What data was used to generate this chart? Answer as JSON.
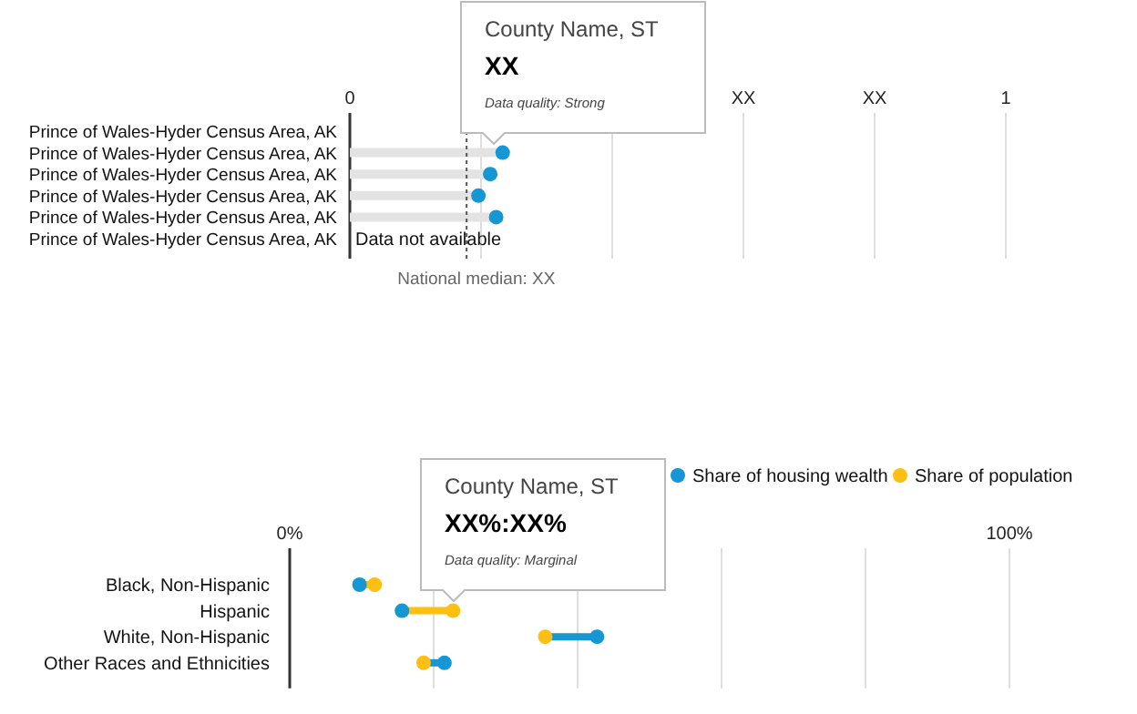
{
  "chart_data": [
    {
      "type": "lollipop",
      "orientation": "horizontal",
      "categories": [
        "Prince of Wales-Hyder Census Area, AK",
        "Prince of Wales-Hyder Census Area, AK",
        "Prince of Wales-Hyder Census Area, AK",
        "Prince of Wales-Hyder Census Area, AK",
        "Prince of Wales-Hyder Census Area, AK",
        "Prince of Wales-Hyder Census Area, AK"
      ],
      "values": [
        null,
        0.233,
        0.214,
        0.196,
        0.223,
        null
      ],
      "color": "#1696d2",
      "marker": "circle",
      "xlim": [
        0,
        1
      ],
      "xticks": [
        0,
        {
          "value": 0.2,
          "label": null
        },
        {
          "value": 0.4,
          "label": null
        },
        {
          "value": 0.6,
          "label": "XX"
        },
        {
          "value": 0.8,
          "label": "XX"
        },
        1
      ],
      "grid": "x",
      "ref_lines": [
        {
          "axis": "x",
          "value": 0.178,
          "label": "National median: XX",
          "line_style": "dotted",
          "color": "#555555"
        }
      ],
      "annotations": [
        "County Name, ST",
        "XX",
        "Data quality: Strong",
        "Data not available"
      ]
    },
    {
      "type": "scatter",
      "orientation": "horizontal",
      "categories": [
        "Black, Non-Hispanic",
        "Hispanic",
        "White, Non-Hispanic",
        "Other Races and Ethnicities"
      ],
      "series": [
        {
          "name": "Share of housing wealth",
          "color": "#1696d2",
          "values": [
            9.7,
            15.6,
            42.7,
            21.5
          ]
        },
        {
          "name": "Share of population",
          "color": "#fdbf11",
          "values": [
            11.8,
            22.7,
            35.5,
            18.6
          ]
        }
      ],
      "marker": "circle",
      "xlim": [
        0,
        100
      ],
      "xticks": [
        {
          "value": 0,
          "label": "0%"
        },
        {
          "value": 20,
          "label": null
        },
        {
          "value": 40,
          "label": null
        },
        {
          "value": 60,
          "label": null
        },
        {
          "value": 80,
          "label": null
        },
        {
          "value": 100,
          "label": "100%"
        }
      ],
      "grid": "x",
      "legend": "top",
      "annotations": [
        "County Name, ST",
        "XX%:XX%",
        "Data quality: Marginal"
      ]
    }
  ]
}
